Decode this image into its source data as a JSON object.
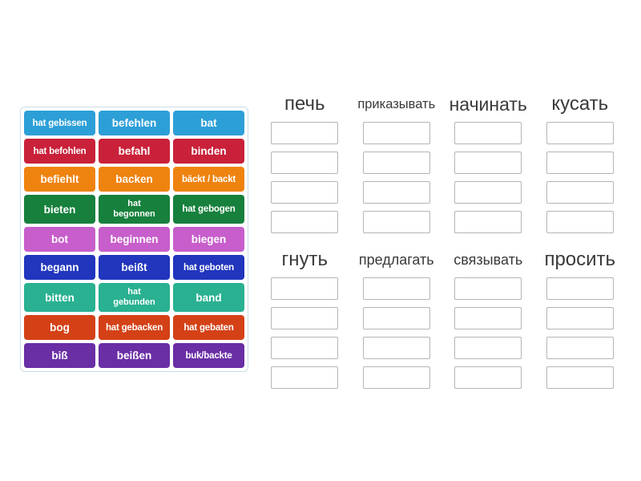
{
  "tile_panel": {
    "tiles": [
      {
        "label": "hat gebissen",
        "color": "#2d9fd7",
        "size": "sm"
      },
      {
        "label": "befehlen",
        "color": "#2d9fd7",
        "size": "md"
      },
      {
        "label": "bat",
        "color": "#2d9fd7",
        "size": "md"
      },
      {
        "label": "hat befohlen",
        "color": "#c92139",
        "size": "sm"
      },
      {
        "label": "befahl",
        "color": "#c92139",
        "size": "md"
      },
      {
        "label": "binden",
        "color": "#c92139",
        "size": "md"
      },
      {
        "label": "befiehlt",
        "color": "#ef830f",
        "size": "md"
      },
      {
        "label": "backen",
        "color": "#ef830f",
        "size": "md"
      },
      {
        "label": "bäckt / backt",
        "color": "#ef830f",
        "size": "sm"
      },
      {
        "label": "bieten",
        "color": "#17803c",
        "size": "md"
      },
      {
        "label": "hat begonnen",
        "color": "#17803c",
        "size": "wrap"
      },
      {
        "label": "hat gebogen",
        "color": "#17803c",
        "size": "sm"
      },
      {
        "label": "bot",
        "color": "#c75ecb",
        "size": "md"
      },
      {
        "label": "beginnen",
        "color": "#c75ecb",
        "size": "md"
      },
      {
        "label": "biegen",
        "color": "#c75ecb",
        "size": "md"
      },
      {
        "label": "begann",
        "color": "#2135bd",
        "size": "md"
      },
      {
        "label": "beißt",
        "color": "#2135bd",
        "size": "md"
      },
      {
        "label": "hat geboten",
        "color": "#2135bd",
        "size": "sm"
      },
      {
        "label": "bitten",
        "color": "#29b191",
        "size": "md"
      },
      {
        "label": "hat gebunden",
        "color": "#29b191",
        "size": "wrap"
      },
      {
        "label": "band",
        "color": "#29b191",
        "size": "md"
      },
      {
        "label": "bog",
        "color": "#d44117",
        "size": "md"
      },
      {
        "label": "hat gebacken",
        "color": "#d44117",
        "size": "sm"
      },
      {
        "label": "hat gebaten",
        "color": "#d44117",
        "size": "sm"
      },
      {
        "label": "biß",
        "color": "#6a2ea5",
        "size": "md"
      },
      {
        "label": "beißen",
        "color": "#6a2ea5",
        "size": "md"
      },
      {
        "label": "buk/backte",
        "color": "#6a2ea5",
        "size": "sm"
      }
    ]
  },
  "groups": [
    {
      "title": "печь",
      "title_size": "lg",
      "slot_count": 4
    },
    {
      "title": "приказывать",
      "title_size": "xs",
      "slot_count": 4
    },
    {
      "title": "начинать",
      "title_size": "md",
      "slot_count": 4
    },
    {
      "title": "кусать",
      "title_size": "lg",
      "slot_count": 4
    },
    {
      "title": "гнуть",
      "title_size": "lg",
      "slot_count": 4
    },
    {
      "title": "предлагать",
      "title_size": "sm",
      "slot_count": 4
    },
    {
      "title": "связывать",
      "title_size": "sm",
      "slot_count": 4
    },
    {
      "title": "просить",
      "title_size": "lg",
      "slot_count": 4
    }
  ],
  "colors": {
    "panel_border": "#c9dbe6",
    "slot_border": "#b5b5b5",
    "title_text": "#3a3a3a",
    "tile_text": "#ffffff"
  }
}
